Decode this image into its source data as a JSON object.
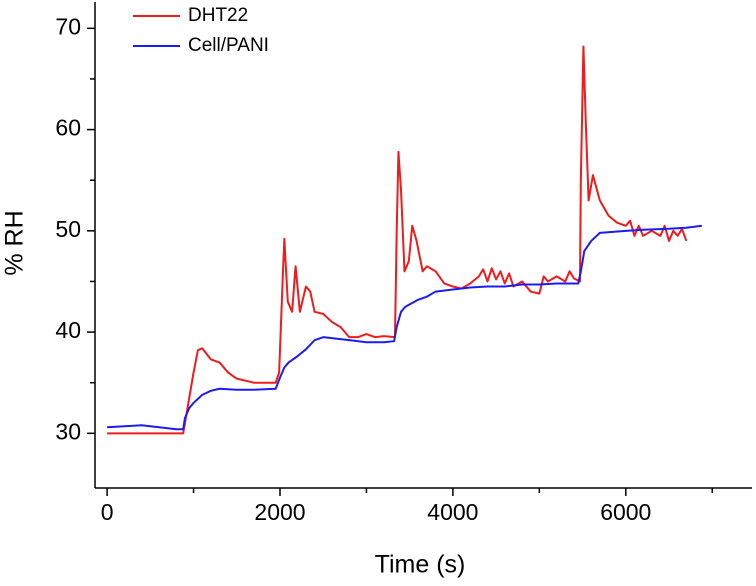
{
  "chart_data": {
    "type": "line",
    "x_label": "Time (s)",
    "y_label": "% RH",
    "xlim": [
      -140,
      7460
    ],
    "ylim": [
      24.6,
      72.6
    ],
    "xticks": [
      0,
      2000,
      4000,
      6000
    ],
    "xminorticks": [
      1000,
      3000,
      5000,
      7000
    ],
    "yticks": [
      30,
      40,
      50,
      60,
      70
    ],
    "yminorticks": [
      35,
      45,
      55,
      65
    ],
    "grid": false,
    "legend": "top-left",
    "series": [
      {
        "name": "DHT22",
        "color": "#ee1c1c",
        "x": [
          0,
          200,
          500,
          880,
          900,
          1000,
          1050,
          1100,
          1200,
          1300,
          1400,
          1500,
          1700,
          1950,
          1990,
          2030,
          2050,
          2090,
          2140,
          2180,
          2230,
          2300,
          2350,
          2400,
          2500,
          2600,
          2700,
          2800,
          2900,
          3000,
          3100,
          3200,
          3330,
          3350,
          3370,
          3400,
          3440,
          3490,
          3530,
          3580,
          3650,
          3700,
          3800,
          3900,
          4000,
          4100,
          4200,
          4300,
          4350,
          4400,
          4450,
          4500,
          4550,
          4600,
          4650,
          4700,
          4800,
          4900,
          5000,
          5050,
          5100,
          5200,
          5300,
          5350,
          5400,
          5470,
          5480,
          5510,
          5540,
          5570,
          5620,
          5700,
          5800,
          5900,
          6000,
          6050,
          6100,
          6150,
          6200,
          6300,
          6400,
          6450,
          6500,
          6550,
          6600,
          6650,
          6700
        ],
        "values": [
          30,
          30,
          30,
          30,
          31,
          36,
          38.2,
          38.4,
          37.3,
          37,
          36,
          35.4,
          35,
          35,
          36,
          45,
          49.2,
          43,
          42,
          46.5,
          42,
          44.5,
          44,
          42,
          41.8,
          41,
          40.5,
          39.5,
          39.5,
          39.8,
          39.5,
          39.6,
          39.5,
          50,
          57.8,
          54,
          46,
          47,
          50.5,
          49,
          46,
          46.5,
          46,
          44.8,
          44.5,
          44.3,
          44.8,
          45.5,
          46.2,
          45,
          46.3,
          45.2,
          46,
          44.8,
          45.8,
          44.5,
          45,
          44,
          43.8,
          45.5,
          45,
          45.5,
          45,
          46,
          45.3,
          45,
          55,
          68.2,
          60,
          53,
          55.5,
          53,
          51.5,
          50.8,
          50.5,
          51,
          49.5,
          50.5,
          49.5,
          50,
          49.5,
          50.5,
          49,
          50,
          49.5,
          50.2,
          49
        ]
      },
      {
        "name": "Cell/PANI",
        "color": "#1c1cee",
        "x": [
          0,
          200,
          400,
          600,
          800,
          880,
          900,
          950,
          1000,
          1100,
          1200,
          1300,
          1500,
          1700,
          1950,
          2000,
          2050,
          2100,
          2200,
          2300,
          2400,
          2500,
          2600,
          2800,
          3000,
          3200,
          3320,
          3350,
          3400,
          3450,
          3600,
          3700,
          3800,
          4000,
          4200,
          4400,
          4600,
          4800,
          5000,
          5200,
          5450,
          5480,
          5520,
          5600,
          5700,
          6000,
          6200,
          6500,
          6700,
          6880
        ],
        "values": [
          30.6,
          30.7,
          30.8,
          30.6,
          30.4,
          30.4,
          31.5,
          32.5,
          33,
          33.8,
          34.2,
          34.4,
          34.3,
          34.3,
          34.4,
          35.5,
          36.5,
          37,
          37.6,
          38.3,
          39.2,
          39.5,
          39.4,
          39.2,
          39,
          39,
          39.1,
          40.5,
          42,
          42.5,
          43.2,
          43.5,
          44,
          44.2,
          44.4,
          44.5,
          44.5,
          44.7,
          44.7,
          44.8,
          44.8,
          46,
          48,
          49,
          49.8,
          50,
          50.1,
          50.2,
          50.3,
          50.5
        ]
      }
    ]
  }
}
